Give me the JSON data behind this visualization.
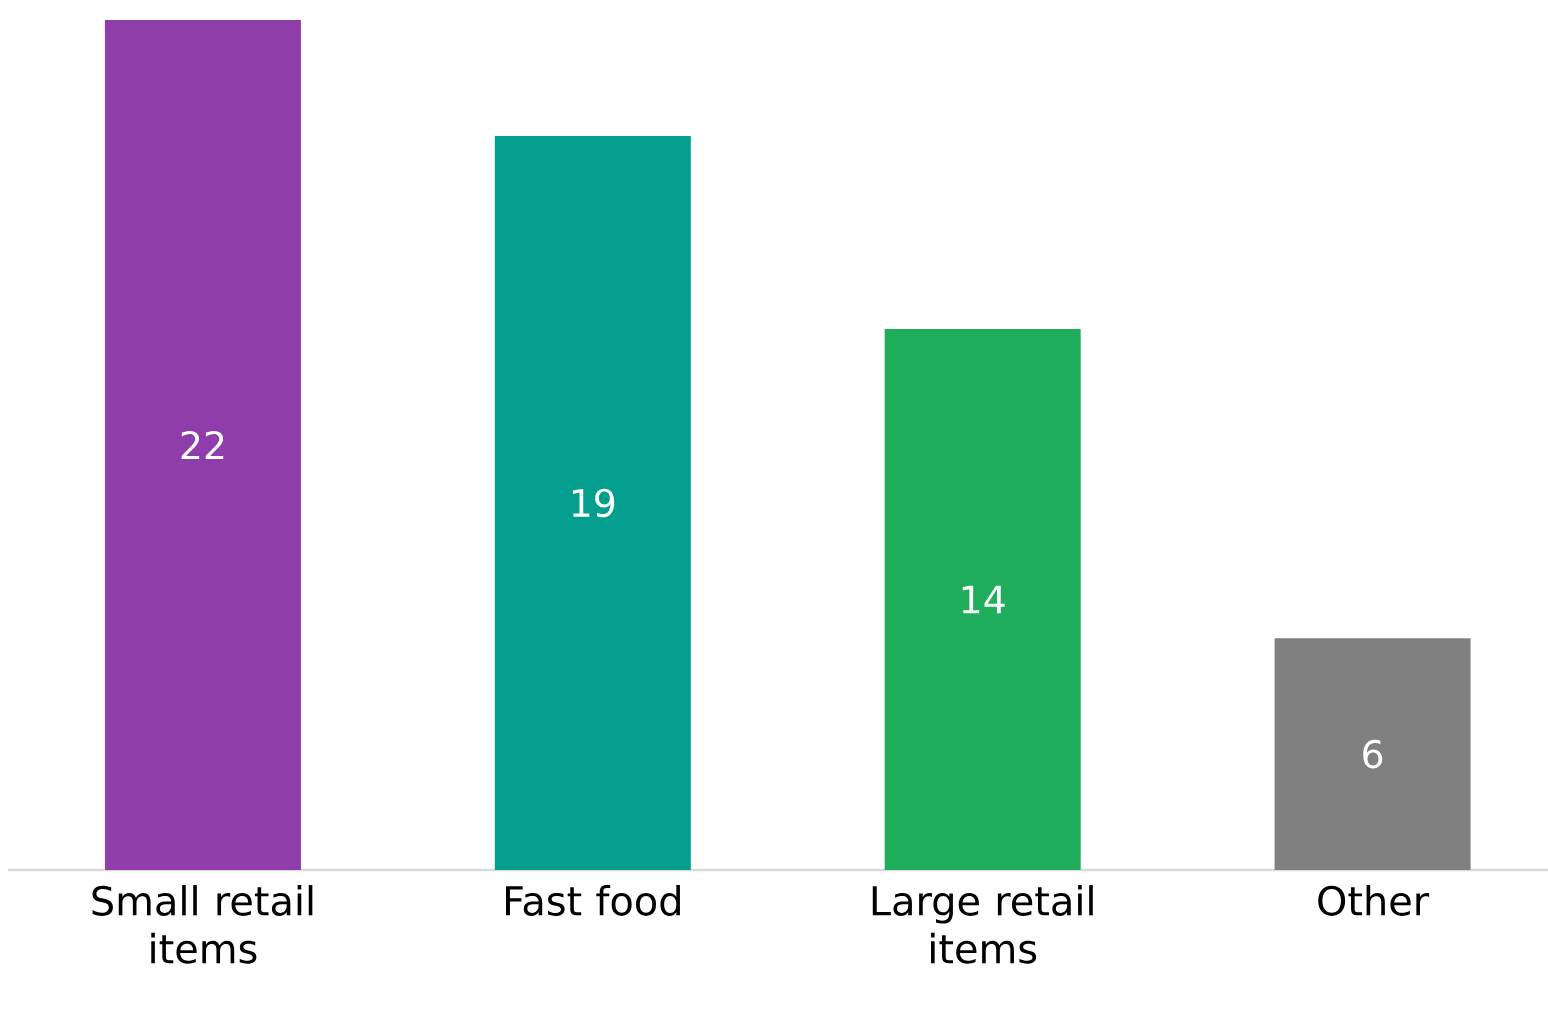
{
  "chart_data": {
    "type": "bar",
    "categories": [
      "Small retail items",
      "Fast food",
      "Large retail items",
      "Other"
    ],
    "values": [
      22,
      19,
      14,
      6
    ],
    "colors": [
      "#8e3dab",
      "#049e8e",
      "#20ad5b",
      "#808080"
    ],
    "data_labels": true
  }
}
